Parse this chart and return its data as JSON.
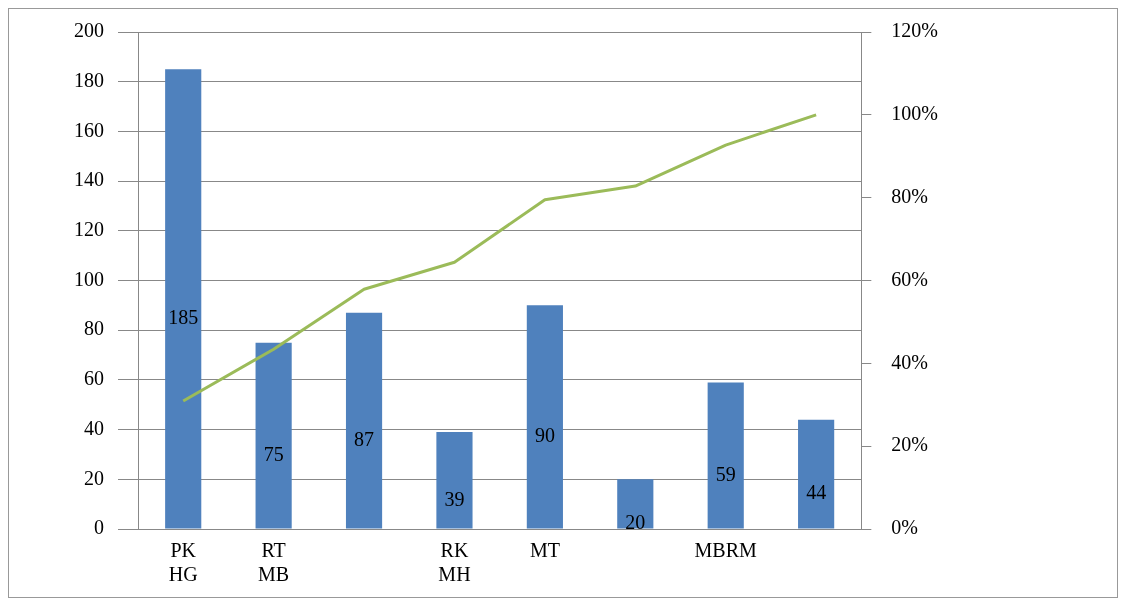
{
  "chart_data": {
    "type": "bar",
    "categories": [
      "PK HG",
      "RT MB",
      null,
      "RK MH",
      "MT",
      null,
      "MBRM",
      null
    ],
    "series": [
      {
        "color": "#4f81bd",
        "values": [
          185,
          75,
          87,
          39,
          90,
          20,
          59,
          44
        ],
        "value_labels": [
          "185",
          "75",
          "87",
          "39",
          "90",
          "20",
          "59",
          "44"
        ]
      },
      {
        "type": "line",
        "axis": "y2",
        "color": "#9bbb59",
        "values": [
          30.9,
          43.4,
          57.9,
          64.4,
          79.5,
          82.8,
          92.7,
          100
        ]
      }
    ],
    "ylim": [
      0,
      200
    ],
    "yticks": [
      0,
      20,
      40,
      60,
      80,
      100,
      120,
      140,
      160,
      180,
      200
    ],
    "y2lim": [
      0,
      120
    ],
    "y2ticks": [
      {
        "value": 0,
        "label": "0%"
      },
      {
        "value": 20,
        "label": "20%"
      },
      {
        "value": 40,
        "label": "40%"
      },
      {
        "value": 60,
        "label": "60%"
      },
      {
        "value": 80,
        "label": "80%"
      },
      {
        "value": 100,
        "label": "100%"
      },
      {
        "value": 120,
        "label": "120%"
      }
    ],
    "grid": "y",
    "legend": false,
    "marker": "none",
    "line_style": "solid"
  }
}
